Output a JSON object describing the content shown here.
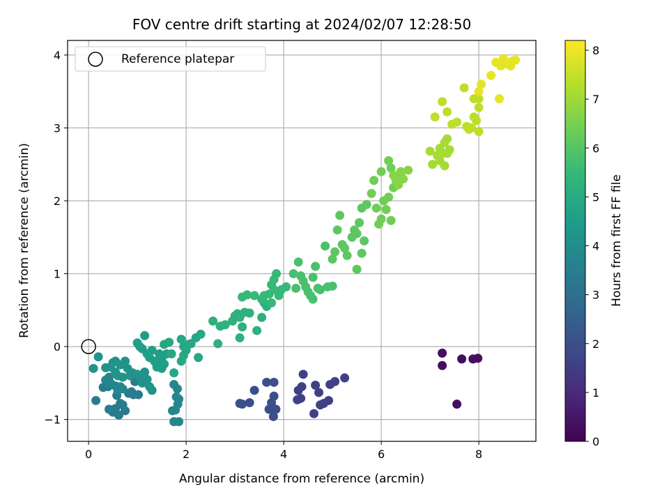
{
  "chart_data": {
    "type": "scatter",
    "title": "FOV centre drift starting at 2024/02/07 12:28:50",
    "xlabel": "Angular distance from reference (arcmin)",
    "ylabel": "Rotation from reference (arcmin)",
    "xlim": [
      -0.43,
      9.17
    ],
    "ylim": [
      -1.3,
      4.2
    ],
    "xticks": [
      0,
      2,
      4,
      6,
      8
    ],
    "xtick_labels": [
      "0",
      "2",
      "4",
      "6",
      "8"
    ],
    "yticks": [
      -1,
      0,
      1,
      2,
      3,
      4
    ],
    "ytick_labels": [
      "−1",
      "0",
      "1",
      "2",
      "3",
      "4"
    ],
    "grid": true,
    "legend": {
      "placement": "top-left",
      "entries": [
        {
          "label": "Reference platepar",
          "marker": "open-circle",
          "color": "#000000"
        }
      ]
    },
    "reference_point": {
      "x": 0,
      "y": 0,
      "label": "Reference platepar"
    },
    "colorbar": {
      "label": "Hours from first FF file",
      "colormap": "viridis",
      "range": [
        0,
        8.2
      ],
      "ticks": [
        0,
        1,
        2,
        3,
        4,
        5,
        6,
        7,
        8
      ],
      "tick_labels": [
        "0",
        "1",
        "2",
        "3",
        "4",
        "5",
        "6",
        "7",
        "8"
      ]
    },
    "point_groups": [
      {
        "hours": 0.3,
        "points": [
          [
            7.25,
            -0.09
          ],
          [
            7.25,
            -0.26
          ],
          [
            7.65,
            -0.17
          ],
          [
            7.88,
            -0.17
          ],
          [
            7.98,
            -0.16
          ],
          [
            7.55,
            -0.79
          ]
        ]
      },
      {
        "hours": 1.6,
        "points": [
          [
            5.25,
            -0.43
          ],
          [
            5.05,
            -0.48
          ],
          [
            4.95,
            -0.52
          ],
          [
            4.65,
            -0.53
          ],
          [
            4.72,
            -0.63
          ],
          [
            4.92,
            -0.74
          ],
          [
            4.82,
            -0.78
          ],
          [
            4.75,
            -0.8
          ],
          [
            4.62,
            -0.92
          ],
          [
            4.4,
            -0.38
          ],
          [
            4.37,
            -0.55
          ],
          [
            4.3,
            -0.6
          ],
          [
            4.35,
            -0.71
          ],
          [
            4.28,
            -0.73
          ]
        ]
      },
      {
        "hours": 2.0,
        "points": [
          [
            3.65,
            -0.49
          ],
          [
            3.8,
            -0.49
          ],
          [
            3.8,
            -0.68
          ],
          [
            3.75,
            -0.77
          ],
          [
            3.7,
            -0.86
          ],
          [
            3.78,
            -0.87
          ],
          [
            3.84,
            -0.86
          ],
          [
            3.79,
            -0.96
          ],
          [
            3.4,
            -0.6
          ],
          [
            3.3,
            -0.77
          ],
          [
            3.15,
            -0.79
          ],
          [
            3.1,
            -0.78
          ]
        ]
      },
      {
        "hours": 3.4,
        "points": [
          [
            0.95,
            -0.48
          ],
          [
            0.82,
            -0.64
          ],
          [
            0.92,
            -0.66
          ],
          [
            0.88,
            -0.62
          ],
          [
            1.02,
            -0.66
          ],
          [
            0.3,
            -0.56
          ],
          [
            0.4,
            -0.55
          ],
          [
            0.42,
            -0.86
          ],
          [
            0.5,
            -0.9
          ],
          [
            0.62,
            -0.94
          ],
          [
            0.55,
            -0.85
          ],
          [
            0.65,
            -0.78
          ],
          [
            0.75,
            -0.88
          ],
          [
            0.7,
            -0.8
          ],
          [
            0.58,
            -0.67
          ],
          [
            0.15,
            -0.74
          ]
        ]
      },
      {
        "hours": 3.8,
        "points": [
          [
            1.75,
            -0.52
          ],
          [
            1.82,
            -0.58
          ],
          [
            1.8,
            -0.69
          ],
          [
            1.85,
            -0.72
          ],
          [
            1.83,
            -0.79
          ],
          [
            1.72,
            -0.88
          ],
          [
            1.78,
            -0.87
          ],
          [
            1.75,
            -1.03
          ],
          [
            1.85,
            -1.03
          ],
          [
            0.35,
            -0.46
          ],
          [
            0.45,
            -0.5
          ],
          [
            0.55,
            -0.54
          ],
          [
            0.42,
            -0.42
          ],
          [
            0.65,
            -0.55
          ],
          [
            0.7,
            -0.58
          ],
          [
            0.6,
            -0.6
          ]
        ]
      },
      {
        "hours": 4.2,
        "points": [
          [
            0.1,
            -0.3
          ],
          [
            0.2,
            -0.14
          ],
          [
            0.35,
            -0.29
          ],
          [
            0.45,
            -0.28
          ],
          [
            0.55,
            -0.35
          ],
          [
            0.6,
            -0.4
          ],
          [
            0.7,
            -0.42
          ],
          [
            0.5,
            -0.22
          ],
          [
            0.55,
            -0.2
          ],
          [
            0.75,
            -0.2
          ],
          [
            0.8,
            -0.3
          ],
          [
            0.85,
            -0.4
          ],
          [
            0.9,
            -0.36
          ],
          [
            1.0,
            -0.38
          ],
          [
            1.05,
            -0.42
          ],
          [
            1.1,
            -0.5
          ],
          [
            1.2,
            -0.45
          ],
          [
            1.25,
            -0.55
          ],
          [
            1.3,
            -0.6
          ],
          [
            1.15,
            -0.35
          ],
          [
            0.65,
            -0.25
          ]
        ]
      },
      {
        "hours": 4.6,
        "points": [
          [
            1.0,
            0.05
          ],
          [
            1.1,
            -0.03
          ],
          [
            1.2,
            -0.1
          ],
          [
            1.25,
            -0.15
          ],
          [
            1.35,
            -0.2
          ],
          [
            1.4,
            -0.28
          ],
          [
            1.5,
            -0.3
          ],
          [
            1.55,
            -0.24
          ],
          [
            1.15,
            0.15
          ],
          [
            1.05,
            0.0
          ],
          [
            1.3,
            -0.05
          ],
          [
            1.45,
            -0.1
          ],
          [
            1.6,
            -0.1
          ],
          [
            1.5,
            -0.18
          ]
        ]
      },
      {
        "hours": 4.9,
        "points": [
          [
            1.55,
            0.03
          ],
          [
            1.65,
            0.06
          ],
          [
            1.7,
            -0.1
          ],
          [
            1.75,
            -0.36
          ],
          [
            1.9,
            0.1
          ],
          [
            1.95,
            0.0
          ],
          [
            2.0,
            -0.05
          ],
          [
            2.05,
            0.03
          ],
          [
            1.95,
            -0.12
          ],
          [
            1.9,
            -0.2
          ],
          [
            2.1,
            0.04
          ],
          [
            2.2,
            0.12
          ],
          [
            2.3,
            0.17
          ],
          [
            2.25,
            -0.15
          ]
        ]
      },
      {
        "hours": 5.2,
        "points": [
          [
            2.55,
            0.35
          ],
          [
            2.7,
            0.28
          ],
          [
            2.8,
            0.3
          ],
          [
            2.95,
            0.35
          ],
          [
            2.65,
            0.04
          ],
          [
            3.0,
            0.42
          ],
          [
            3.05,
            0.45
          ],
          [
            3.1,
            0.4
          ],
          [
            3.1,
            0.12
          ],
          [
            3.15,
            0.27
          ],
          [
            3.2,
            0.47
          ],
          [
            3.3,
            0.46
          ],
          [
            3.45,
            0.22
          ],
          [
            3.55,
            0.4
          ],
          [
            3.6,
            0.6
          ],
          [
            3.65,
            0.55
          ]
        ]
      },
      {
        "hours": 5.5,
        "points": [
          [
            3.15,
            0.68
          ],
          [
            3.25,
            0.71
          ],
          [
            3.4,
            0.7
          ],
          [
            3.55,
            0.65
          ],
          [
            3.6,
            0.7
          ],
          [
            3.7,
            0.72
          ],
          [
            3.75,
            0.85
          ],
          [
            3.8,
            0.92
          ],
          [
            3.85,
            1.0
          ],
          [
            3.8,
            0.78
          ],
          [
            3.9,
            0.7
          ],
          [
            3.95,
            0.78
          ],
          [
            4.05,
            0.82
          ],
          [
            3.75,
            0.6
          ]
        ]
      },
      {
        "hours": 5.8,
        "points": [
          [
            4.2,
            1.0
          ],
          [
            4.3,
            1.16
          ],
          [
            4.35,
            0.97
          ],
          [
            4.4,
            0.9
          ],
          [
            4.45,
            0.82
          ],
          [
            4.5,
            0.75
          ],
          [
            4.55,
            0.7
          ],
          [
            4.6,
            0.65
          ],
          [
            4.65,
            1.1
          ],
          [
            4.7,
            0.8
          ],
          [
            4.75,
            0.78
          ],
          [
            4.85,
            1.38
          ],
          [
            4.9,
            0.82
          ],
          [
            5.0,
            0.83
          ],
          [
            4.25,
            0.8
          ],
          [
            4.6,
            0.95
          ]
        ]
      },
      {
        "hours": 6.1,
        "points": [
          [
            5.0,
            1.2
          ],
          [
            5.05,
            1.3
          ],
          [
            5.1,
            1.6
          ],
          [
            5.15,
            1.8
          ],
          [
            5.2,
            1.4
          ],
          [
            5.25,
            1.35
          ],
          [
            5.3,
            1.25
          ],
          [
            5.4,
            1.5
          ],
          [
            5.45,
            1.6
          ],
          [
            5.5,
            1.55
          ],
          [
            5.55,
            1.7
          ],
          [
            5.6,
            1.9
          ],
          [
            5.65,
            1.45
          ],
          [
            5.7,
            1.95
          ],
          [
            5.5,
            1.06
          ],
          [
            5.6,
            1.28
          ]
        ]
      },
      {
        "hours": 6.4,
        "points": [
          [
            5.8,
            2.1
          ],
          [
            5.85,
            2.28
          ],
          [
            5.9,
            1.9
          ],
          [
            5.95,
            1.68
          ],
          [
            6.0,
            1.75
          ],
          [
            6.05,
            2.0
          ],
          [
            6.1,
            1.88
          ],
          [
            6.15,
            2.05
          ],
          [
            6.2,
            1.73
          ],
          [
            6.25,
            2.18
          ],
          [
            6.0,
            2.4
          ],
          [
            6.15,
            2.55
          ],
          [
            6.2,
            2.45
          ]
        ]
      },
      {
        "hours": 6.7,
        "points": [
          [
            6.3,
            2.3
          ],
          [
            6.35,
            2.35
          ],
          [
            6.4,
            2.4
          ],
          [
            6.45,
            2.3
          ],
          [
            6.55,
            2.42
          ],
          [
            6.25,
            2.35
          ],
          [
            6.3,
            2.28
          ],
          [
            6.35,
            2.22
          ],
          [
            6.4,
            2.38
          ]
        ]
      },
      {
        "hours": 7.1,
        "points": [
          [
            7.0,
            2.68
          ],
          [
            7.05,
            2.5
          ],
          [
            7.15,
            2.62
          ],
          [
            7.2,
            2.72
          ],
          [
            7.25,
            2.65
          ],
          [
            7.3,
            2.8
          ],
          [
            7.35,
            2.65
          ],
          [
            7.3,
            2.48
          ],
          [
            7.4,
            2.7
          ],
          [
            7.35,
            2.85
          ],
          [
            7.2,
            2.55
          ]
        ]
      },
      {
        "hours": 7.4,
        "points": [
          [
            7.1,
            3.15
          ],
          [
            7.25,
            3.36
          ],
          [
            7.35,
            3.22
          ],
          [
            7.45,
            3.05
          ],
          [
            7.55,
            3.08
          ],
          [
            7.7,
            3.55
          ],
          [
            7.75,
            3.02
          ],
          [
            7.8,
            2.98
          ],
          [
            7.85,
            3.0
          ],
          [
            7.9,
            3.15
          ],
          [
            7.9,
            3.4
          ],
          [
            7.95,
            3.1
          ],
          [
            8.0,
            2.95
          ],
          [
            8.0,
            3.28
          ],
          [
            8.0,
            3.4
          ]
        ]
      },
      {
        "hours": 7.9,
        "points": [
          [
            8.0,
            3.5
          ],
          [
            8.05,
            3.6
          ],
          [
            8.25,
            3.72
          ],
          [
            8.35,
            3.9
          ],
          [
            8.42,
            3.4
          ],
          [
            8.45,
            3.85
          ],
          [
            8.5,
            3.95
          ],
          [
            8.55,
            3.88
          ],
          [
            8.6,
            3.9
          ],
          [
            8.65,
            3.85
          ],
          [
            8.7,
            3.92
          ],
          [
            8.75,
            3.93
          ]
        ]
      }
    ]
  }
}
